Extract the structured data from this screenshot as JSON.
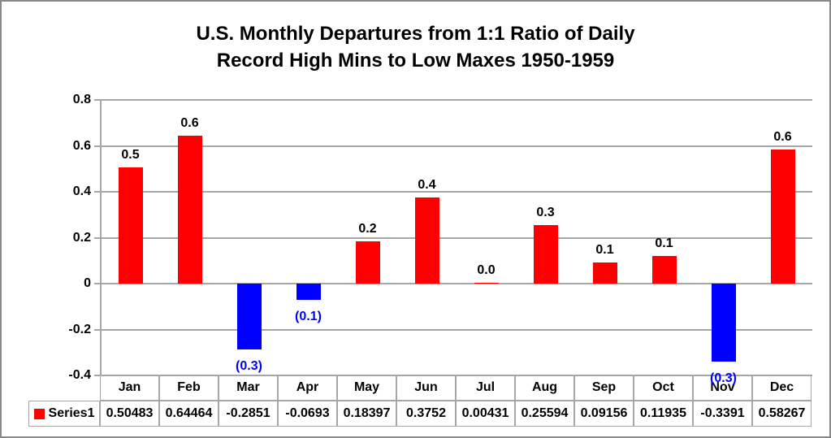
{
  "title": {
    "line1": "U.S. Monthly Departures from 1:1 Ratio of Daily",
    "line2": "Record High Mins to Low Maxes 1950-1959"
  },
  "chart_data": {
    "type": "bar",
    "title": "U.S. Monthly Departures from 1:1 Ratio of Daily Record High Mins to Low Maxes 1950-1959",
    "categories": [
      "Jan",
      "Feb",
      "Mar",
      "Apr",
      "May",
      "Jun",
      "Jul",
      "Aug",
      "Sep",
      "Oct",
      "Nov",
      "Dec"
    ],
    "series": [
      {
        "name": "Series1",
        "values": [
          0.50483,
          0.64464,
          -0.2851,
          -0.0693,
          0.18397,
          0.3752,
          0.00431,
          0.25594,
          0.09156,
          0.11935,
          -0.3391,
          0.58267
        ],
        "cell_text": [
          "0.50483",
          "0.64464",
          "-0.2851",
          "-0.0693",
          "0.18397",
          "0.3752",
          "0.00431",
          "0.25594",
          "0.09156",
          "0.11935",
          "-0.3391",
          "0.58267"
        ],
        "data_labels": [
          "0.5",
          "0.6",
          "(0.3)",
          "(0.1)",
          "0.2",
          "0.4",
          "0.0",
          "0.3",
          "0.1",
          "0.1",
          "(0.3)",
          "0.6"
        ]
      }
    ],
    "xlabel": "",
    "ylabel": "",
    "ylim": [
      -0.4,
      0.8
    ],
    "ytick_labels": [
      "0.8",
      "0.6",
      "0.4",
      "0.2",
      "0",
      "-0.2",
      "-0.4"
    ],
    "ytick_values": [
      0.8,
      0.6,
      0.4,
      0.2,
      0,
      -0.2,
      -0.4
    ],
    "grid": "horizontal",
    "legend_position": "data-table-left",
    "colors": {
      "positive_bar": "#ff0000",
      "negative_bar": "#0000ff",
      "positive_label": "#000000",
      "negative_label": "#0000ff",
      "gridline": "#a6a6a6",
      "table_border": "#a6a6a6",
      "frame_border": "#898989",
      "title_text": "#000000"
    }
  }
}
